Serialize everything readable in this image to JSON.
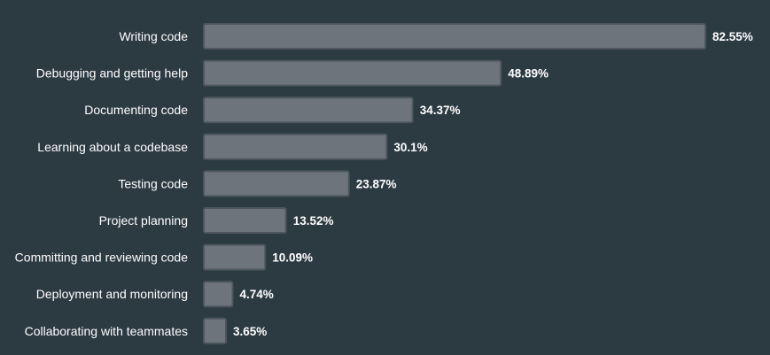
{
  "chart_data": {
    "type": "bar",
    "orientation": "horizontal",
    "categories": [
      "Writing code",
      "Debugging and getting help",
      "Documenting code",
      "Learning about a codebase",
      "Testing code",
      "Project planning",
      "Committing and reviewing code",
      "Deployment and monitoring",
      "Collaborating with teammates"
    ],
    "values": [
      82.55,
      48.89,
      34.37,
      30.1,
      23.87,
      13.52,
      10.09,
      4.74,
      3.65
    ],
    "value_labels": [
      "82.55%",
      "48.89%",
      "34.37%",
      "30.1%",
      "23.87%",
      "13.52%",
      "10.09%",
      "4.74%",
      "3.65%"
    ],
    "unit": "%",
    "xlim": [
      0,
      82.55
    ],
    "grid": false,
    "legend": "none"
  },
  "colors": {
    "background": "#2c3a42",
    "bar_fill": "#6e747c",
    "bar_stroke": "#4d565e",
    "text": "#ffffff"
  }
}
